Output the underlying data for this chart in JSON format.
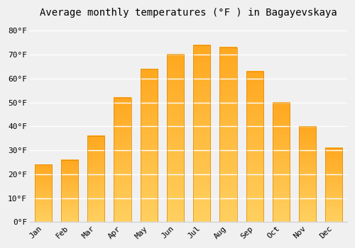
{
  "title": "Average monthly temperatures (°F ) in Bagayevskaya",
  "months": [
    "Jan",
    "Feb",
    "Mar",
    "Apr",
    "May",
    "Jun",
    "Jul",
    "Aug",
    "Sep",
    "Oct",
    "Nov",
    "Dec"
  ],
  "values": [
    24,
    26,
    36,
    52,
    64,
    70,
    74,
    73,
    63,
    50,
    40,
    31
  ],
  "bar_color": "#FFA500",
  "bar_edge_color": "#E08800",
  "background_color": "#f0f0f0",
  "plot_background": "#f0f0f0",
  "grid_color": "#ffffff",
  "yticks": [
    0,
    10,
    20,
    30,
    40,
    50,
    60,
    70,
    80
  ],
  "ylim": [
    0,
    83
  ],
  "title_fontsize": 10,
  "tick_fontsize": 8,
  "font_family": "monospace"
}
